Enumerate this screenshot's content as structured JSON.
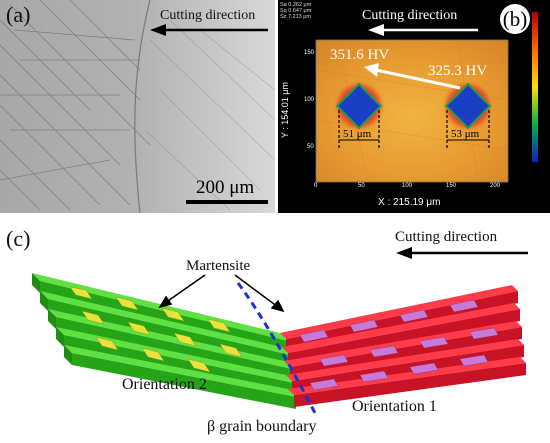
{
  "panel_a": {
    "label": "(a)",
    "direction_text": "Cutting direction",
    "scale_label": "200 μm"
  },
  "panel_b": {
    "label": "(b)",
    "direction_text": "Cutting direction",
    "stats": [
      "Sa 0.262 μm",
      "Sq 0.647 μm",
      "Sz 7.213 μm"
    ],
    "hardness_left": "351.6 HV",
    "hardness_right": "325.3 HV",
    "width_left": "51 μm",
    "width_right": "53 μm",
    "x_axis_label": "X : 215.19 μm",
    "y_axis_label": "Y : 154.01 μm",
    "x_ticks": [
      "0",
      "50",
      "100",
      "150",
      "200"
    ],
    "y_ticks": [
      "150",
      "100",
      "50"
    ]
  },
  "panel_c": {
    "label": "(c)",
    "direction_text": "Cutting direction",
    "martensite_label": "Martensite",
    "orientation_2": "Orientation 2",
    "orientation_1": "Orientation 1",
    "grain_boundary_label": "β grain boundary"
  },
  "colors": {
    "grain_green": "#2ecc1a",
    "grain_red": "#e01b2b",
    "martensite_yellow": "#e8e23a",
    "martensite_pink": "#c97ad6",
    "boundary_blue": "#1f2fd6",
    "map_orange": "#e8a23a"
  }
}
